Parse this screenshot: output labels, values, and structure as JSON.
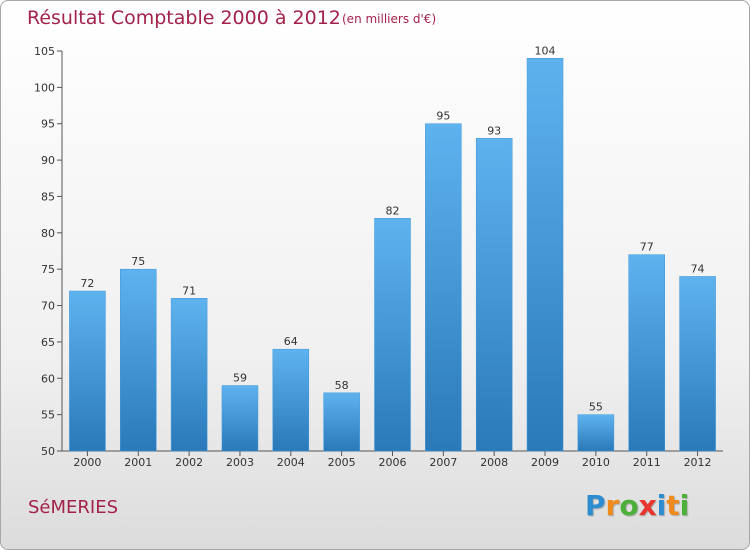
{
  "chart_data": {
    "type": "bar",
    "title": "Résultat Comptable 2000 à 2012",
    "subtitle": "(en milliers d'€)",
    "categories": [
      "2000",
      "2001",
      "2002",
      "2003",
      "2004",
      "2005",
      "2006",
      "2007",
      "2008",
      "2009",
      "2010",
      "2011",
      "2012"
    ],
    "values": [
      72,
      75,
      71,
      59,
      64,
      58,
      82,
      95,
      93,
      104,
      55,
      77,
      74
    ],
    "ylim": [
      50,
      105
    ],
    "yticks": [
      50,
      55,
      60,
      65,
      70,
      75,
      80,
      85,
      90,
      95,
      100,
      105
    ],
    "grid": false,
    "bar_color": "#3f97d9",
    "bar_color_dark": "#2a79b9",
    "bar_color_light": "#5eb3ef"
  },
  "footer": {
    "commune": "SéMERIES",
    "logo_letters": [
      {
        "char": "P",
        "color": "#2d8bd0"
      },
      {
        "char": "r",
        "color": "#f08a1c"
      },
      {
        "char": "o",
        "color": "#4caf3a"
      },
      {
        "char": "x",
        "color": "#e8352e"
      },
      {
        "char": "i",
        "color": "#2d8bd0"
      },
      {
        "char": "t",
        "color": "#f08a1c"
      },
      {
        "char": "i",
        "color": "#4caf3a"
      }
    ]
  }
}
